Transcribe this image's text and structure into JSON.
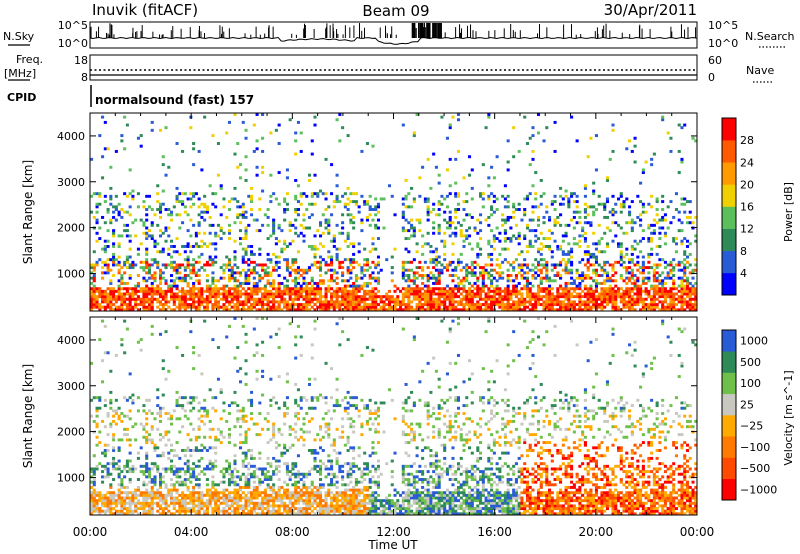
{
  "header": {
    "station": "Inuvik (fitACF)",
    "beam": "Beam 09",
    "date": "30/Apr/2011"
  },
  "left_labels": {
    "nsky": "N.Sky",
    "nsky_top": "10^5",
    "nsky_bottom": "10^0",
    "freq": "Freq.",
    "freq_unit": "[MHz]",
    "freq_top": "18",
    "freq_bottom": "8",
    "cpid": "CPID",
    "cpid_value": "normalsound (fast) 157"
  },
  "right_labels": {
    "nsearch": "N.Search",
    "nsearch_top": "10^5",
    "nsearch_bottom": "10^0",
    "nave": "Nave",
    "nave_top": "60",
    "nave_bottom": "0"
  },
  "colors": {
    "power_scale": [
      "#0000ff",
      "#2a5bd7",
      "#2e8b57",
      "#5bbf5b",
      "#f0d000",
      "#ff9a00",
      "#ff5a00",
      "#ff0000"
    ],
    "velocity_scale": [
      "#ff0000",
      "#ff4a00",
      "#ff7a00",
      "#ffaa00",
      "#c8c8c0",
      "#6ec04a",
      "#2e8b57",
      "#2a5bd7"
    ]
  },
  "chart_data": [
    {
      "type": "heatmap",
      "name": "power",
      "xlabel": "",
      "ylabel": "Slant Range [km]",
      "x_ticks": [
        "00:00",
        "04:00",
        "08:00",
        "12:00",
        "16:00",
        "20:00",
        "00:00"
      ],
      "xlim_hours": [
        0,
        24
      ],
      "ylim_km": [
        180,
        4500
      ],
      "y_ticks": [
        1000,
        2000,
        3000,
        4000
      ],
      "colorbar": {
        "label": "Power [dB]",
        "ticks": [
          4,
          8,
          12,
          16,
          20,
          24,
          28
        ],
        "range": [
          0,
          32
        ]
      }
    },
    {
      "type": "heatmap",
      "name": "velocity",
      "xlabel": "Time UT",
      "ylabel": "Slant Range [km]",
      "x_ticks": [
        "00:00",
        "04:00",
        "08:00",
        "12:00",
        "16:00",
        "20:00",
        "00:00"
      ],
      "xlim_hours": [
        0,
        24
      ],
      "ylim_km": [
        180,
        4500
      ],
      "y_ticks": [
        1000,
        2000,
        3000,
        4000
      ],
      "colorbar": {
        "label": "Velocity [m s^-1]",
        "ticks": [
          "1000",
          "500",
          "100",
          "25",
          "−25",
          "−100",
          "−500",
          "−1000"
        ]
      }
    }
  ]
}
